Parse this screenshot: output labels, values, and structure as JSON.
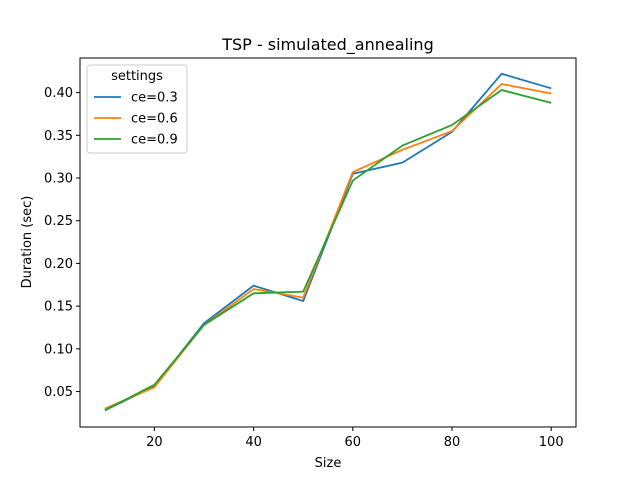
{
  "chart_data": {
    "type": "line",
    "title": "TSP - simulated_annealing",
    "xlabel": "Size",
    "ylabel": "Duration (sec)",
    "x": [
      10,
      20,
      30,
      40,
      50,
      60,
      70,
      80,
      90,
      100
    ],
    "xlim": [
      5,
      105
    ],
    "ylim": [
      0.0085,
      0.4405
    ],
    "xticks": [
      20,
      40,
      60,
      80,
      100
    ],
    "yticks": [
      0.05,
      0.1,
      0.15,
      0.2,
      0.25,
      0.3,
      0.35,
      0.4
    ],
    "ytick_labels": [
      "0.05",
      "0.10",
      "0.15",
      "0.20",
      "0.25",
      "0.30",
      "0.35",
      "0.40"
    ],
    "grid": false,
    "legend": {
      "title": "settings",
      "position": "upper-left"
    },
    "series": [
      {
        "name": "ce=0.3",
        "color": "#1f77b4",
        "values": [
          0.028,
          0.056,
          0.13,
          0.174,
          0.156,
          0.305,
          0.318,
          0.354,
          0.422,
          0.405
        ]
      },
      {
        "name": "ce=0.6",
        "color": "#ff7f0e",
        "values": [
          0.03,
          0.055,
          0.128,
          0.17,
          0.16,
          0.307,
          0.333,
          0.355,
          0.41,
          0.399
        ]
      },
      {
        "name": "ce=0.9",
        "color": "#2ca02c",
        "values": [
          0.028,
          0.058,
          0.128,
          0.165,
          0.167,
          0.297,
          0.338,
          0.362,
          0.403,
          0.388
        ]
      }
    ]
  }
}
